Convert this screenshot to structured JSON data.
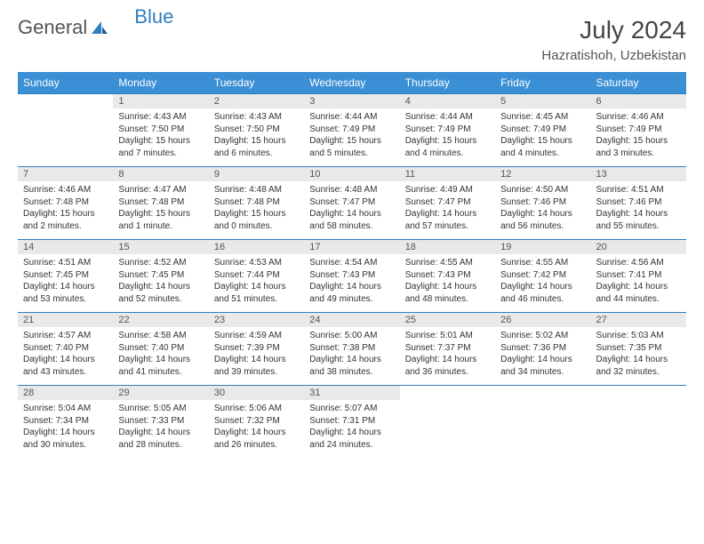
{
  "logo": {
    "text1": "General",
    "text2": "Blue"
  },
  "title": "July 2024",
  "location": "Hazratishoh, Uzbekistan",
  "colors": {
    "header_bg": "#3b8fd4",
    "header_text": "#ffffff",
    "daynum_bg": "#e9e9e9",
    "row_border": "#2f7fc0",
    "body_text": "#333333",
    "logo_gray": "#555555",
    "logo_blue": "#2f7fc0",
    "background": "#ffffff"
  },
  "typography": {
    "title_fontsize": 28,
    "location_fontsize": 15,
    "weekday_fontsize": 12,
    "daynum_fontsize": 11,
    "cell_fontsize": 10
  },
  "weekdays": [
    "Sunday",
    "Monday",
    "Tuesday",
    "Wednesday",
    "Thursday",
    "Friday",
    "Saturday"
  ],
  "weeks": [
    [
      null,
      {
        "n": "1",
        "sr": "Sunrise: 4:43 AM",
        "ss": "Sunset: 7:50 PM",
        "d1": "Daylight: 15 hours",
        "d2": "and 7 minutes."
      },
      {
        "n": "2",
        "sr": "Sunrise: 4:43 AM",
        "ss": "Sunset: 7:50 PM",
        "d1": "Daylight: 15 hours",
        "d2": "and 6 minutes."
      },
      {
        "n": "3",
        "sr": "Sunrise: 4:44 AM",
        "ss": "Sunset: 7:49 PM",
        "d1": "Daylight: 15 hours",
        "d2": "and 5 minutes."
      },
      {
        "n": "4",
        "sr": "Sunrise: 4:44 AM",
        "ss": "Sunset: 7:49 PM",
        "d1": "Daylight: 15 hours",
        "d2": "and 4 minutes."
      },
      {
        "n": "5",
        "sr": "Sunrise: 4:45 AM",
        "ss": "Sunset: 7:49 PM",
        "d1": "Daylight: 15 hours",
        "d2": "and 4 minutes."
      },
      {
        "n": "6",
        "sr": "Sunrise: 4:46 AM",
        "ss": "Sunset: 7:49 PM",
        "d1": "Daylight: 15 hours",
        "d2": "and 3 minutes."
      }
    ],
    [
      {
        "n": "7",
        "sr": "Sunrise: 4:46 AM",
        "ss": "Sunset: 7:48 PM",
        "d1": "Daylight: 15 hours",
        "d2": "and 2 minutes."
      },
      {
        "n": "8",
        "sr": "Sunrise: 4:47 AM",
        "ss": "Sunset: 7:48 PM",
        "d1": "Daylight: 15 hours",
        "d2": "and 1 minute."
      },
      {
        "n": "9",
        "sr": "Sunrise: 4:48 AM",
        "ss": "Sunset: 7:48 PM",
        "d1": "Daylight: 15 hours",
        "d2": "and 0 minutes."
      },
      {
        "n": "10",
        "sr": "Sunrise: 4:48 AM",
        "ss": "Sunset: 7:47 PM",
        "d1": "Daylight: 14 hours",
        "d2": "and 58 minutes."
      },
      {
        "n": "11",
        "sr": "Sunrise: 4:49 AM",
        "ss": "Sunset: 7:47 PM",
        "d1": "Daylight: 14 hours",
        "d2": "and 57 minutes."
      },
      {
        "n": "12",
        "sr": "Sunrise: 4:50 AM",
        "ss": "Sunset: 7:46 PM",
        "d1": "Daylight: 14 hours",
        "d2": "and 56 minutes."
      },
      {
        "n": "13",
        "sr": "Sunrise: 4:51 AM",
        "ss": "Sunset: 7:46 PM",
        "d1": "Daylight: 14 hours",
        "d2": "and 55 minutes."
      }
    ],
    [
      {
        "n": "14",
        "sr": "Sunrise: 4:51 AM",
        "ss": "Sunset: 7:45 PM",
        "d1": "Daylight: 14 hours",
        "d2": "and 53 minutes."
      },
      {
        "n": "15",
        "sr": "Sunrise: 4:52 AM",
        "ss": "Sunset: 7:45 PM",
        "d1": "Daylight: 14 hours",
        "d2": "and 52 minutes."
      },
      {
        "n": "16",
        "sr": "Sunrise: 4:53 AM",
        "ss": "Sunset: 7:44 PM",
        "d1": "Daylight: 14 hours",
        "d2": "and 51 minutes."
      },
      {
        "n": "17",
        "sr": "Sunrise: 4:54 AM",
        "ss": "Sunset: 7:43 PM",
        "d1": "Daylight: 14 hours",
        "d2": "and 49 minutes."
      },
      {
        "n": "18",
        "sr": "Sunrise: 4:55 AM",
        "ss": "Sunset: 7:43 PM",
        "d1": "Daylight: 14 hours",
        "d2": "and 48 minutes."
      },
      {
        "n": "19",
        "sr": "Sunrise: 4:55 AM",
        "ss": "Sunset: 7:42 PM",
        "d1": "Daylight: 14 hours",
        "d2": "and 46 minutes."
      },
      {
        "n": "20",
        "sr": "Sunrise: 4:56 AM",
        "ss": "Sunset: 7:41 PM",
        "d1": "Daylight: 14 hours",
        "d2": "and 44 minutes."
      }
    ],
    [
      {
        "n": "21",
        "sr": "Sunrise: 4:57 AM",
        "ss": "Sunset: 7:40 PM",
        "d1": "Daylight: 14 hours",
        "d2": "and 43 minutes."
      },
      {
        "n": "22",
        "sr": "Sunrise: 4:58 AM",
        "ss": "Sunset: 7:40 PM",
        "d1": "Daylight: 14 hours",
        "d2": "and 41 minutes."
      },
      {
        "n": "23",
        "sr": "Sunrise: 4:59 AM",
        "ss": "Sunset: 7:39 PM",
        "d1": "Daylight: 14 hours",
        "d2": "and 39 minutes."
      },
      {
        "n": "24",
        "sr": "Sunrise: 5:00 AM",
        "ss": "Sunset: 7:38 PM",
        "d1": "Daylight: 14 hours",
        "d2": "and 38 minutes."
      },
      {
        "n": "25",
        "sr": "Sunrise: 5:01 AM",
        "ss": "Sunset: 7:37 PM",
        "d1": "Daylight: 14 hours",
        "d2": "and 36 minutes."
      },
      {
        "n": "26",
        "sr": "Sunrise: 5:02 AM",
        "ss": "Sunset: 7:36 PM",
        "d1": "Daylight: 14 hours",
        "d2": "and 34 minutes."
      },
      {
        "n": "27",
        "sr": "Sunrise: 5:03 AM",
        "ss": "Sunset: 7:35 PM",
        "d1": "Daylight: 14 hours",
        "d2": "and 32 minutes."
      }
    ],
    [
      {
        "n": "28",
        "sr": "Sunrise: 5:04 AM",
        "ss": "Sunset: 7:34 PM",
        "d1": "Daylight: 14 hours",
        "d2": "and 30 minutes."
      },
      {
        "n": "29",
        "sr": "Sunrise: 5:05 AM",
        "ss": "Sunset: 7:33 PM",
        "d1": "Daylight: 14 hours",
        "d2": "and 28 minutes."
      },
      {
        "n": "30",
        "sr": "Sunrise: 5:06 AM",
        "ss": "Sunset: 7:32 PM",
        "d1": "Daylight: 14 hours",
        "d2": "and 26 minutes."
      },
      {
        "n": "31",
        "sr": "Sunrise: 5:07 AM",
        "ss": "Sunset: 7:31 PM",
        "d1": "Daylight: 14 hours",
        "d2": "and 24 minutes."
      },
      null,
      null,
      null
    ]
  ]
}
